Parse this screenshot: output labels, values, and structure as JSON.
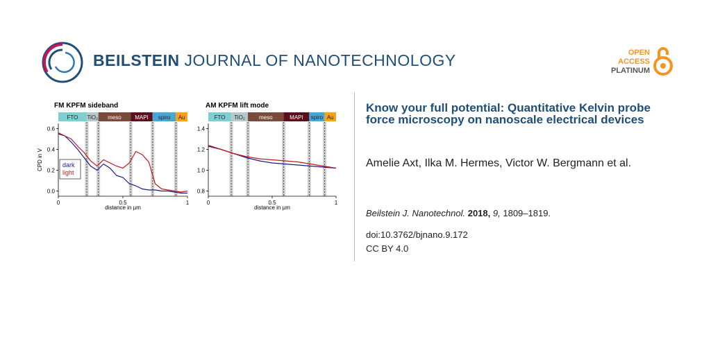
{
  "header": {
    "journal_bold": "BEILSTEIN",
    "journal_rest": " JOURNAL OF NANOTECHNOLOGY",
    "oa_line1": "OPEN",
    "oa_line2": "ACCESS",
    "oa_line3": "PLATINUM"
  },
  "article": {
    "title": "Know your full potential: Quantitative Kelvin probe force microscopy on nanoscale electrical devices",
    "authors": "Amelie Axt, Ilka M. Hermes, Victor W. Bergmann et al.",
    "journal_abbrev": "Beilstein J. Nanotechnol.",
    "year": "2018,",
    "volume": "9,",
    "pages": "1809–1819.",
    "doi": "doi:10.3762/bjnano.9.172",
    "license": "CC BY 4.0"
  },
  "chart_data": [
    {
      "type": "line",
      "title": "FM KPFM sideband",
      "xlabel": "distance in µm",
      "ylabel": "CPD in V",
      "xlim": [
        0,
        1
      ],
      "ylim": [
        -0.05,
        0.65
      ],
      "xticks": [
        "0",
        "0.5",
        "1"
      ],
      "yticks": [
        "0.0",
        "0.2",
        "0.4",
        "0.6"
      ],
      "layers": [
        {
          "name": "FTO",
          "x0": 0,
          "x1": 0.22,
          "color": "#7fcfd2"
        },
        {
          "name": "TiO₂",
          "x0": 0.22,
          "x1": 0.31,
          "color": "#b5c8cc"
        },
        {
          "name": "meso",
          "x0": 0.31,
          "x1": 0.56,
          "color": "#7a4a3a"
        },
        {
          "name": "MAPI",
          "x0": 0.56,
          "x1": 0.73,
          "color": "#5a0f1c"
        },
        {
          "name": "spiro",
          "x0": 0.73,
          "x1": 0.91,
          "color": "#4aa6d0"
        },
        {
          "name": "Au",
          "x0": 0.91,
          "x1": 1.0,
          "color": "#f7a21b"
        }
      ],
      "interfaces": [
        0.22,
        0.31,
        0.56,
        0.73,
        0.91
      ],
      "legend": [
        "dark",
        "light"
      ],
      "series": [
        {
          "name": "dark",
          "color": "#1a1a8c",
          "x": [
            0,
            0.05,
            0.1,
            0.15,
            0.2,
            0.25,
            0.3,
            0.35,
            0.4,
            0.45,
            0.5,
            0.55,
            0.6,
            0.65,
            0.7,
            0.75,
            0.8,
            0.85,
            0.9,
            0.95,
            1.0
          ],
          "y": [
            0.55,
            0.53,
            0.47,
            0.4,
            0.32,
            0.24,
            0.2,
            0.26,
            0.22,
            0.15,
            0.13,
            0.07,
            0.05,
            0.02,
            0.01,
            0.01,
            0.0,
            0.0,
            -0.01,
            -0.02,
            -0.02
          ]
        },
        {
          "name": "light",
          "color": "#c0161c",
          "x": [
            0,
            0.05,
            0.1,
            0.15,
            0.2,
            0.25,
            0.3,
            0.35,
            0.4,
            0.45,
            0.5,
            0.55,
            0.6,
            0.65,
            0.7,
            0.75,
            0.8,
            0.85,
            0.9,
            0.95,
            1.0
          ],
          "y": [
            0.56,
            0.53,
            0.5,
            0.43,
            0.37,
            0.29,
            0.24,
            0.3,
            0.27,
            0.24,
            0.22,
            0.27,
            0.38,
            0.35,
            0.28,
            0.07,
            0.02,
            0.01,
            0.0,
            -0.01,
            0.0
          ]
        }
      ]
    },
    {
      "type": "line",
      "title": "AM KPFM lift mode",
      "xlabel": "distance in µm",
      "xlim": [
        0,
        1
      ],
      "ylim": [
        0.75,
        1.45
      ],
      "xticks": [
        "0",
        "0.5",
        "1"
      ],
      "yticks": [
        "0.8",
        "1.0",
        "1.2",
        "1.4"
      ],
      "layers": [
        {
          "name": "FTO",
          "x0": 0,
          "x1": 0.18,
          "color": "#7fcfd2"
        },
        {
          "name": "TiO₂",
          "x0": 0.18,
          "x1": 0.31,
          "color": "#b5c8cc"
        },
        {
          "name": "meso",
          "x0": 0.31,
          "x1": 0.59,
          "color": "#7a4a3a"
        },
        {
          "name": "MAPI",
          "x0": 0.59,
          "x1": 0.79,
          "color": "#5a0f1c"
        },
        {
          "name": "spiro",
          "x0": 0.79,
          "x1": 0.91,
          "color": "#4aa6d0"
        },
        {
          "name": "Au",
          "x0": 0.91,
          "x1": 1.0,
          "color": "#f7a21b"
        }
      ],
      "interfaces": [
        0.18,
        0.31,
        0.59,
        0.79,
        0.91
      ],
      "series": [
        {
          "name": "dark",
          "color": "#1a1a8c",
          "x": [
            0,
            0.1,
            0.2,
            0.3,
            0.4,
            0.5,
            0.6,
            0.7,
            0.8,
            0.9,
            1.0
          ],
          "y": [
            1.23,
            1.2,
            1.16,
            1.12,
            1.09,
            1.07,
            1.06,
            1.05,
            1.04,
            1.03,
            1.02
          ]
        },
        {
          "name": "light",
          "color": "#c0161c",
          "x": [
            0,
            0.1,
            0.2,
            0.3,
            0.4,
            0.5,
            0.6,
            0.7,
            0.8,
            0.9,
            1.0
          ],
          "y": [
            1.24,
            1.2,
            1.16,
            1.13,
            1.11,
            1.1,
            1.09,
            1.08,
            1.06,
            1.04,
            1.02
          ]
        }
      ]
    }
  ]
}
